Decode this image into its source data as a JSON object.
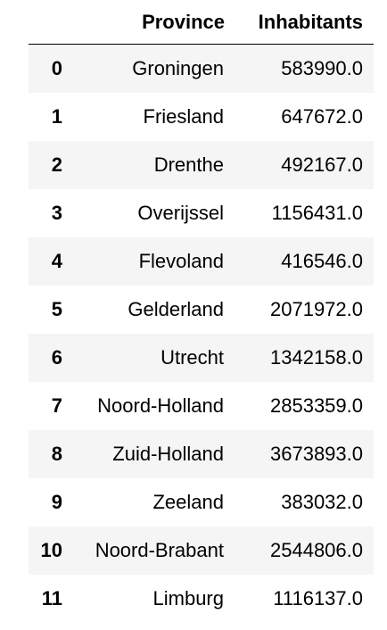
{
  "table": {
    "columns": [
      "",
      "Province",
      "Inhabitants"
    ],
    "rows": [
      {
        "index": "0",
        "province": "Groningen",
        "inhabitants": "583990.0"
      },
      {
        "index": "1",
        "province": "Friesland",
        "inhabitants": "647672.0"
      },
      {
        "index": "2",
        "province": "Drenthe",
        "inhabitants": "492167.0"
      },
      {
        "index": "3",
        "province": "Overijssel",
        "inhabitants": "1156431.0"
      },
      {
        "index": "4",
        "province": "Flevoland",
        "inhabitants": "416546.0"
      },
      {
        "index": "5",
        "province": "Gelderland",
        "inhabitants": "2071972.0"
      },
      {
        "index": "6",
        "province": "Utrecht",
        "inhabitants": "1342158.0"
      },
      {
        "index": "7",
        "province": "Noord-Holland",
        "inhabitants": "2853359.0"
      },
      {
        "index": "8",
        "province": "Zuid-Holland",
        "inhabitants": "3673893.0"
      },
      {
        "index": "9",
        "province": "Zeeland",
        "inhabitants": "383032.0"
      },
      {
        "index": "10",
        "province": "Noord-Brabant",
        "inhabitants": "2544806.0"
      },
      {
        "index": "11",
        "province": "Limburg",
        "inhabitants": "1116137.0"
      }
    ]
  },
  "colors": {
    "striped_row_background": "#f5f5f5",
    "header_rule": "#000000"
  }
}
